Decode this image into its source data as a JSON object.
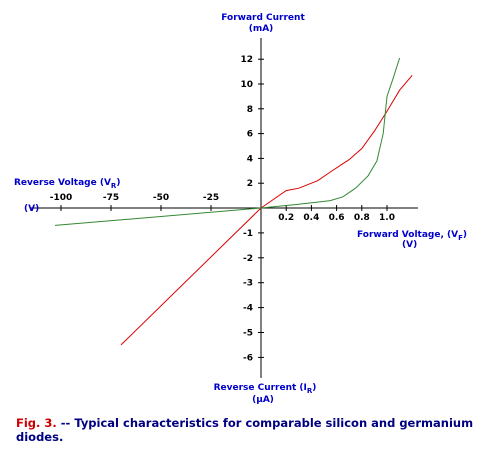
{
  "chart_data": {
    "type": "line",
    "axes": {
      "forward_current": {
        "title": "Forward Current",
        "unit": "(mA)"
      },
      "reverse_voltage": {
        "title": "Reverse Voltage (V",
        "subscript": "R",
        "close": ")",
        "unit": "(V)"
      },
      "forward_voltage": {
        "title": "Forward Voltage, (V",
        "subscript": "F",
        "close": ")",
        "unit": "(V)"
      },
      "reverse_current": {
        "title": "Reverse Current (I",
        "subscript": "R",
        "close": ")",
        "unit": "(µA)"
      }
    },
    "x_positive_ticks": [
      {
        "value": 0.2,
        "label": "0.2"
      },
      {
        "value": 0.4,
        "label": "0.4"
      },
      {
        "value": 0.6,
        "label": "0.6"
      },
      {
        "value": 0.8,
        "label": "0.8"
      },
      {
        "value": 1.0,
        "label": "1.0"
      }
    ],
    "x_negative_ticks": [
      {
        "value": -100,
        "label": "-100"
      },
      {
        "value": -75,
        "label": "-75"
      },
      {
        "value": -50,
        "label": "-50"
      },
      {
        "value": -25,
        "label": "-25"
      }
    ],
    "y_positive_ticks": [
      {
        "value": 2,
        "label": "2"
      },
      {
        "value": 4,
        "label": "4"
      },
      {
        "value": 6,
        "label": "6"
      },
      {
        "value": 8,
        "label": "8"
      },
      {
        "value": 10,
        "label": "10"
      },
      {
        "value": 12,
        "label": "12"
      }
    ],
    "y_negative_ticks": [
      {
        "value": -1,
        "label": "-1"
      },
      {
        "value": -2,
        "label": "-2"
      },
      {
        "value": -3,
        "label": "-3"
      },
      {
        "value": -4,
        "label": "-4"
      },
      {
        "value": -5,
        "label": "-5"
      },
      {
        "value": -6,
        "label": "-6"
      }
    ],
    "series": [
      {
        "color": "#dd0000",
        "forward": [
          {
            "v": 0.0,
            "i": 0.0
          },
          {
            "v": 0.2,
            "i": 1.4
          },
          {
            "v": 0.3,
            "i": 1.6
          },
          {
            "v": 0.45,
            "i": 2.2
          },
          {
            "v": 0.55,
            "i": 2.9
          },
          {
            "v": 0.7,
            "i": 3.9
          },
          {
            "v": 0.8,
            "i": 4.8
          },
          {
            "v": 0.9,
            "i": 6.2
          },
          {
            "v": 1.0,
            "i": 7.8
          },
          {
            "v": 1.1,
            "i": 9.5
          },
          {
            "v": 1.2,
            "i": 10.7
          }
        ],
        "reverse": [
          {
            "v": 0,
            "i": 0.0
          },
          {
            "v": -70,
            "i": -5.5
          }
        ]
      },
      {
        "color": "#338833",
        "forward": [
          {
            "v": 0.0,
            "i": 0.0
          },
          {
            "v": 0.3,
            "i": 0.3
          },
          {
            "v": 0.55,
            "i": 0.6
          },
          {
            "v": 0.65,
            "i": 0.9
          },
          {
            "v": 0.75,
            "i": 1.6
          },
          {
            "v": 0.85,
            "i": 2.6
          },
          {
            "v": 0.92,
            "i": 3.8
          },
          {
            "v": 0.97,
            "i": 6.0
          },
          {
            "v": 1.0,
            "i": 9.0
          },
          {
            "v": 1.05,
            "i": 10.5
          },
          {
            "v": 1.1,
            "i": 12.1
          }
        ],
        "reverse": [
          {
            "v": 0,
            "i": 0.0
          },
          {
            "v": -103,
            "i": -0.7
          }
        ]
      }
    ],
    "grid": false,
    "legend": "none"
  },
  "caption": {
    "fig_label": "Fig. 3.",
    "text": " -- Typical characteristics for comparable silicon and germanium diodes."
  },
  "colors": {
    "axis": "#000000",
    "label_blue": "#0000cc",
    "caption_navy": "#000080",
    "fig_red": "#cc0000"
  }
}
